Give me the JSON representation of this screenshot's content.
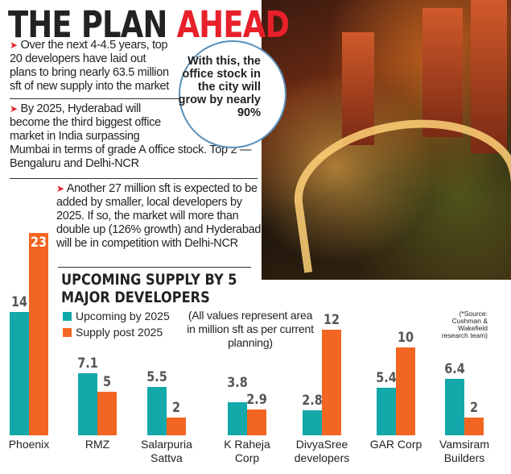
{
  "headline": {
    "part1": "THE PLAN",
    "part2": "AHEAD"
  },
  "bullets": [
    "Over the next 4-4.5 years, top 20 developers have laid out plans to bring nearly 63.5 million sft of new supply into the market",
    "By 2025, Hyderabad will become the third biggest office market in India surpassing Mumbai in terms of grade A office stock. Top 2 — Bengaluru and Delhi-NCR",
    "Another 27 million sft is expected to be added by smaller, local developers by 2025. If so, the market will more than double up (126% growth) and Hyderabad will be in competition with Delhi-NCR"
  ],
  "callout": "With this, the office stock in the city will grow by nearly 90%",
  "chart_data": {
    "type": "bar",
    "title": "UPCOMING SUPPLY BY 5 MAJOR DEVELOPERS",
    "note": "(All values represent area in million sft as per current planning)",
    "source": "(*Source: Cushman & Wakefield research team)",
    "categories": [
      "Phoenix",
      "RMZ",
      "Salarpuria Sattva",
      "K Raheja Corp",
      "DivyaSree developers",
      "GAR Corp",
      "Vamsiram Builders"
    ],
    "series": [
      {
        "name": "Upcoming by 2025",
        "color": "#14a8aa",
        "values": [
          14,
          7.1,
          5.5,
          3.8,
          2.8,
          5.4,
          6.4
        ]
      },
      {
        "name": "Supply post 2025",
        "color": "#f26522",
        "values": [
          23,
          5,
          2,
          2.9,
          12,
          10,
          2
        ]
      }
    ],
    "legend": "top-left",
    "grid": false
  }
}
